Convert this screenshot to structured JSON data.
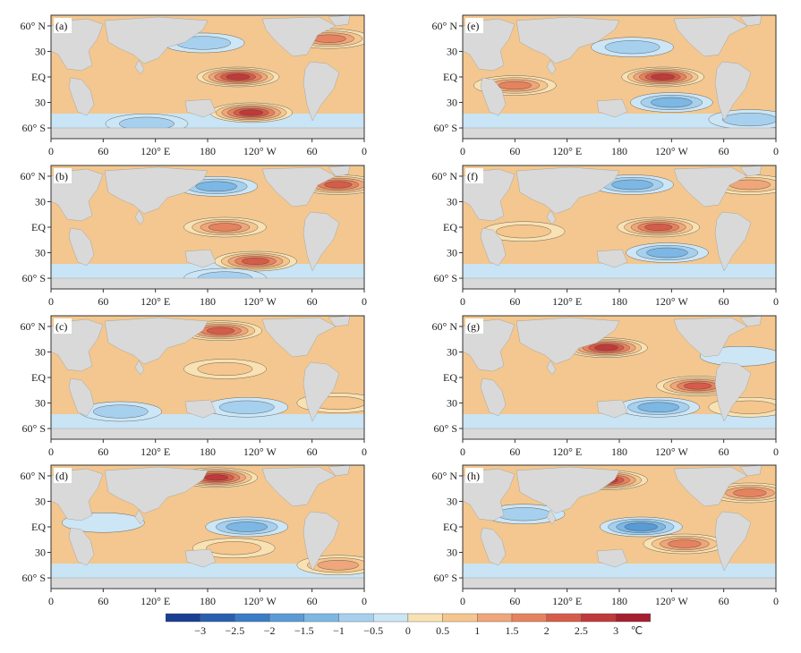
{
  "chart_data": [
    {
      "type": "heatmap",
      "panel": "(a)",
      "title": "",
      "x_ticks": [
        "0",
        "60",
        "120° E",
        "180",
        "120° W",
        "60",
        "0"
      ],
      "y_ticks": [
        "60° N",
        "30",
        "EQ",
        "30",
        "60° S"
      ],
      "features": [
        {
          "name": "equatorial-pacific-warming",
          "lon": 215,
          "lat": 0,
          "value": 3.0
        },
        {
          "name": "south-pacific-warm-patch",
          "lon": 230,
          "lat": -42,
          "value": 3.0
        },
        {
          "name": "north-pacific-cool",
          "lon": 175,
          "lat": 40,
          "value": -1.0
        },
        {
          "name": "southern-ocean-cool",
          "lon": 110,
          "lat": -55,
          "value": -1.0
        },
        {
          "name": "north-atlantic-warm",
          "lon": 320,
          "lat": 45,
          "value": 2.0
        }
      ]
    },
    {
      "type": "heatmap",
      "panel": "(b)",
      "title": "",
      "x_ticks": [
        "0",
        "60",
        "120° E",
        "180",
        "120° W",
        "60",
        "0"
      ],
      "y_ticks": [
        "60° N",
        "30",
        "EQ",
        "30",
        "60° S"
      ],
      "features": [
        {
          "name": "equatorial-pacific-warming",
          "lon": 200,
          "lat": 0,
          "value": 2.0
        },
        {
          "name": "south-pacific-warm-patch",
          "lon": 235,
          "lat": -40,
          "value": 2.5
        },
        {
          "name": "north-pacific-cool",
          "lon": 190,
          "lat": 48,
          "value": -1.5
        },
        {
          "name": "southern-ocean-cool",
          "lon": 200,
          "lat": -60,
          "value": -1.0
        },
        {
          "name": "north-atlantic-warm",
          "lon": 330,
          "lat": 50,
          "value": 2.5
        }
      ]
    },
    {
      "type": "heatmap",
      "panel": "(c)",
      "title": "",
      "x_ticks": [
        "0",
        "60",
        "120° E",
        "180",
        "120° W",
        "60",
        "0"
      ],
      "y_ticks": [
        "60° N",
        "30",
        "EQ",
        "30",
        "60° S"
      ],
      "features": [
        {
          "name": "north-pacific-warm",
          "lon": 195,
          "lat": 55,
          "value": 2.5
        },
        {
          "name": "tropical-pacific-warm",
          "lon": 200,
          "lat": 10,
          "value": 1.0
        },
        {
          "name": "south-pacific-cool",
          "lon": 225,
          "lat": -35,
          "value": -1.0
        },
        {
          "name": "indian-ocean-cool",
          "lon": 80,
          "lat": -40,
          "value": -1.0
        },
        {
          "name": "south-atlantic-warm",
          "lon": 330,
          "lat": -30,
          "value": 1.0
        }
      ]
    },
    {
      "type": "heatmap",
      "panel": "(d)",
      "title": "",
      "x_ticks": [
        "0",
        "60",
        "120° E",
        "180",
        "120° W",
        "60",
        "0"
      ],
      "y_ticks": [
        "60° N",
        "30",
        "EQ",
        "30",
        "60° S"
      ],
      "features": [
        {
          "name": "north-pacific-warm",
          "lon": 190,
          "lat": 58,
          "value": 3.0
        },
        {
          "name": "equatorial-pacific-cool",
          "lon": 225,
          "lat": 0,
          "value": -1.5
        },
        {
          "name": "south-pacific-warm",
          "lon": 210,
          "lat": -25,
          "value": 1.0
        },
        {
          "name": "indian-ocean-cool",
          "lon": 60,
          "lat": 5,
          "value": -0.5
        },
        {
          "name": "south-atlantic-warm",
          "lon": 330,
          "lat": -45,
          "value": 1.5
        }
      ]
    },
    {
      "type": "heatmap",
      "panel": "(e)",
      "title": "",
      "x_ticks": [
        "0",
        "60",
        "120° E",
        "180",
        "120° W",
        "60",
        "0"
      ],
      "y_ticks": [
        "60° N",
        "30",
        "EQ",
        "30",
        "60° S"
      ],
      "features": [
        {
          "name": "equatorial-pacific-warming",
          "lon": 230,
          "lat": 0,
          "value": 3.0
        },
        {
          "name": "indian-ocean-warm",
          "lon": 60,
          "lat": -10,
          "value": 2.0
        },
        {
          "name": "north-pacific-cool",
          "lon": 195,
          "lat": 35,
          "value": -1.0
        },
        {
          "name": "south-pacific-cool",
          "lon": 240,
          "lat": -30,
          "value": -1.5
        },
        {
          "name": "southern-ocean-cool",
          "lon": 330,
          "lat": -50,
          "value": -1.0
        }
      ]
    },
    {
      "type": "heatmap",
      "panel": "(f)",
      "title": "",
      "x_ticks": [
        "0",
        "60",
        "120° E",
        "180",
        "120° W",
        "60",
        "0"
      ],
      "y_ticks": [
        "60° N",
        "30",
        "EQ",
        "30",
        "60° S"
      ],
      "features": [
        {
          "name": "equatorial-pacific-warming",
          "lon": 225,
          "lat": 0,
          "value": 2.5
        },
        {
          "name": "north-pacific-cool",
          "lon": 195,
          "lat": 50,
          "value": -1.5
        },
        {
          "name": "south-pacific-cool",
          "lon": 235,
          "lat": -30,
          "value": -1.5
        },
        {
          "name": "indian-ocean-warm",
          "lon": 70,
          "lat": -5,
          "value": 1.0
        },
        {
          "name": "north-atlantic-warm",
          "lon": 330,
          "lat": 50,
          "value": 1.5
        }
      ]
    },
    {
      "type": "heatmap",
      "panel": "(g)",
      "title": "",
      "x_ticks": [
        "0",
        "60",
        "120° E",
        "180",
        "120° W",
        "60",
        "0"
      ],
      "y_ticks": [
        "60° N",
        "30",
        "EQ",
        "30",
        "60° S"
      ],
      "features": [
        {
          "name": "kuroshio-extension-warm",
          "lon": 165,
          "lat": 35,
          "value": 3.0
        },
        {
          "name": "eastern-pacific-warm",
          "lon": 270,
          "lat": -10,
          "value": 2.5
        },
        {
          "name": "south-pacific-cool",
          "lon": 225,
          "lat": -35,
          "value": -1.5
        },
        {
          "name": "south-atlantic-warm",
          "lon": 330,
          "lat": -35,
          "value": 1.0
        },
        {
          "name": "north-atlantic-cool",
          "lon": 320,
          "lat": 25,
          "value": -0.5
        }
      ]
    },
    {
      "type": "heatmap",
      "panel": "(h)",
      "title": "",
      "x_ticks": [
        "0",
        "60",
        "120° E",
        "180",
        "120° W",
        "60",
        "0"
      ],
      "y_ticks": [
        "60° N",
        "30",
        "EQ",
        "30",
        "60° S"
      ],
      "features": [
        {
          "name": "equatorial-pacific-cool",
          "lon": 205,
          "lat": 0,
          "value": -2.0
        },
        {
          "name": "north-pacific-warm",
          "lon": 165,
          "lat": 55,
          "value": 3.0
        },
        {
          "name": "south-pacific-warm",
          "lon": 255,
          "lat": -20,
          "value": 2.0
        },
        {
          "name": "indian-ocean-cool",
          "lon": 70,
          "lat": 15,
          "value": -1.0
        },
        {
          "name": "north-atlantic-warm",
          "lon": 330,
          "lat": 40,
          "value": 2.0
        }
      ]
    }
  ],
  "colorbar": {
    "ticks": [
      "−3",
      "−2.5",
      "−2",
      "−1.5",
      "−1",
      "−0.5",
      "0",
      "0.5",
      "1",
      "1.5",
      "2",
      "2.5",
      "3"
    ],
    "unit": "℃",
    "colors": [
      "#1a3f92",
      "#2a5fb0",
      "#3b7cc6",
      "#5a9bd6",
      "#7db7e3",
      "#a6d0ee",
      "#cde6f6",
      "#f8e2b4",
      "#f5c68e",
      "#eea67a",
      "#e5835f",
      "#d65c4a",
      "#c03a3b",
      "#a61f2e"
    ]
  },
  "colors": {
    "land": "#d9d9d9",
    "warm_bg": "#f3c78f",
    "cool_bg": "#c9e4f4"
  }
}
